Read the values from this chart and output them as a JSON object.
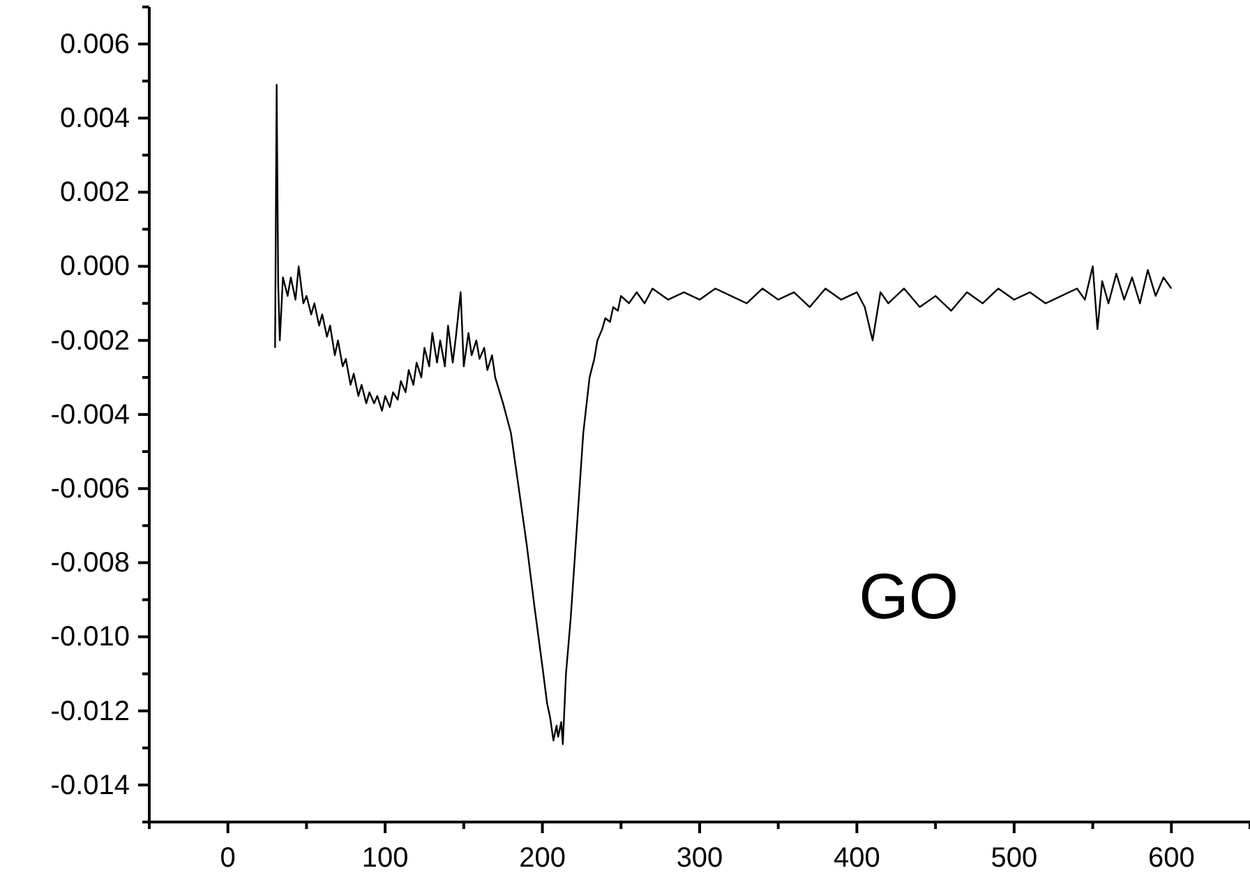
{
  "chart_data": {
    "type": "line",
    "xlim": [
      -50,
      650
    ],
    "xticks": [
      0,
      100,
      200,
      300,
      400,
      500,
      600
    ],
    "ylim": [
      -0.015,
      0.007
    ],
    "yticks": [
      {
        "value": -0.014,
        "label": "-0.014"
      },
      {
        "value": -0.012,
        "label": "-0.012"
      },
      {
        "value": -0.01,
        "label": "-0.010"
      },
      {
        "value": -0.008,
        "label": "-0.008"
      },
      {
        "value": -0.006,
        "label": "-0.006"
      },
      {
        "value": -0.004,
        "label": "-0.004"
      },
      {
        "value": -0.002,
        "label": "-0.002"
      },
      {
        "value": 0,
        "label": "0.000"
      },
      {
        "value": 0.002,
        "label": "0.002"
      },
      {
        "value": 0.004,
        "label": "0.004"
      },
      {
        "value": 0.006,
        "label": "0.006"
      }
    ],
    "annotations": [
      "GO"
    ],
    "grid": false,
    "marker": "none",
    "line_style": "solid",
    "series": [
      {
        "color": "#000000",
        "x": [
          30,
          31,
          32,
          33,
          35,
          38,
          40,
          43,
          45,
          48,
          50,
          53,
          55,
          58,
          60,
          63,
          65,
          68,
          70,
          73,
          75,
          78,
          80,
          83,
          85,
          88,
          90,
          93,
          95,
          98,
          100,
          103,
          105,
          108,
          110,
          113,
          115,
          118,
          120,
          123,
          125,
          128,
          130,
          133,
          135,
          138,
          140,
          143,
          145,
          148,
          150,
          153,
          155,
          158,
          160,
          163,
          165,
          168,
          170,
          175,
          180,
          185,
          190,
          195,
          200,
          203,
          205,
          207,
          209,
          210,
          212,
          213,
          215,
          218,
          222,
          226,
          230,
          233,
          235,
          238,
          240,
          243,
          245,
          248,
          250,
          255,
          260,
          265,
          270,
          280,
          290,
          300,
          310,
          320,
          330,
          340,
          350,
          360,
          370,
          380,
          390,
          400,
          405,
          410,
          415,
          420,
          430,
          440,
          450,
          460,
          470,
          480,
          490,
          500,
          510,
          520,
          530,
          540,
          545,
          550,
          553,
          556,
          560,
          565,
          570,
          575,
          580,
          585,
          590,
          595,
          600
        ],
        "values": [
          -0.0022,
          0.0049,
          -0.0005,
          -0.002,
          -0.0003,
          -0.0008,
          -0.0003,
          -0.0009,
          0.0,
          -0.001,
          -0.0008,
          -0.0013,
          -0.001,
          -0.0016,
          -0.0013,
          -0.0019,
          -0.0016,
          -0.0024,
          -0.002,
          -0.0027,
          -0.0025,
          -0.0032,
          -0.0029,
          -0.0035,
          -0.0032,
          -0.0037,
          -0.0034,
          -0.0037,
          -0.0035,
          -0.0039,
          -0.0035,
          -0.0038,
          -0.0034,
          -0.0036,
          -0.0031,
          -0.0034,
          -0.0028,
          -0.0032,
          -0.0026,
          -0.003,
          -0.0022,
          -0.0027,
          -0.0018,
          -0.0026,
          -0.002,
          -0.0027,
          -0.0016,
          -0.0026,
          -0.0019,
          -0.0007,
          -0.0027,
          -0.0018,
          -0.0024,
          -0.002,
          -0.0025,
          -0.0022,
          -0.0028,
          -0.0024,
          -0.003,
          -0.0037,
          -0.0045,
          -0.006,
          -0.0075,
          -0.0092,
          -0.0108,
          -0.0118,
          -0.0122,
          -0.0128,
          -0.0124,
          -0.0127,
          -0.0123,
          -0.0129,
          -0.011,
          -0.0095,
          -0.007,
          -0.0045,
          -0.003,
          -0.0025,
          -0.002,
          -0.0017,
          -0.0014,
          -0.0015,
          -0.0011,
          -0.0012,
          -0.0008,
          -0.001,
          -0.0007,
          -0.001,
          -0.0006,
          -0.0009,
          -0.0007,
          -0.0009,
          -0.0006,
          -0.0008,
          -0.001,
          -0.0006,
          -0.0009,
          -0.0007,
          -0.0011,
          -0.0006,
          -0.0009,
          -0.0007,
          -0.0011,
          -0.002,
          -0.0007,
          -0.001,
          -0.0006,
          -0.0011,
          -0.0008,
          -0.0012,
          -0.0007,
          -0.001,
          -0.0006,
          -0.0009,
          -0.0007,
          -0.001,
          -0.0008,
          -0.0006,
          -0.0009,
          0.0,
          -0.0017,
          -0.0004,
          -0.001,
          -0.0002,
          -0.0009,
          -0.0003,
          -0.001,
          -0.0001,
          -0.0008,
          -0.0003,
          -0.0006
        ]
      }
    ]
  }
}
